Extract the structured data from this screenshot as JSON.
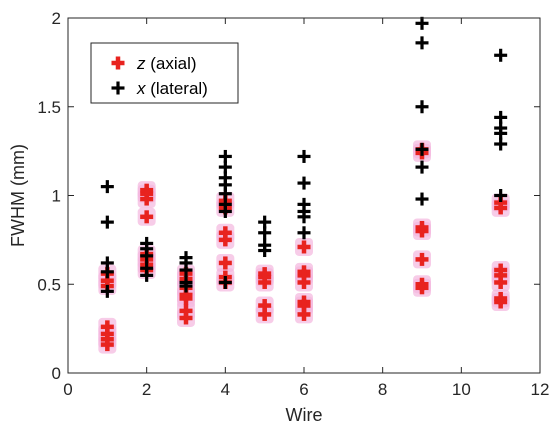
{
  "chart_data": {
    "type": "scatter",
    "title": "",
    "xlabel": "Wire",
    "ylabel": "FWHM (mm)",
    "xlim": [
      0,
      12
    ],
    "ylim": [
      0,
      2
    ],
    "xticks": [
      0,
      2,
      4,
      6,
      8,
      10,
      12
    ],
    "yticks": [
      0,
      0.5,
      1,
      1.5,
      2
    ],
    "xtick_labels": [
      "0",
      "2",
      "4",
      "6",
      "8",
      "10",
      "12"
    ],
    "ytick_labels": [
      "0",
      "0.5",
      "1",
      "1.5",
      "2"
    ],
    "grid": false,
    "legend_position": "top-left",
    "series": [
      {
        "name": "z (axial)",
        "legend_prefix": "z",
        "legend_suffix": " (axial)",
        "color": "#e8231f",
        "halo_color": "#f4b6de",
        "marker": "plus",
        "points": [
          [
            1,
            0.16
          ],
          [
            1,
            0.19
          ],
          [
            1,
            0.22
          ],
          [
            1,
            0.26
          ],
          [
            1,
            0.49
          ],
          [
            1,
            0.52
          ],
          [
            1,
            0.56
          ],
          [
            2,
            0.58
          ],
          [
            2,
            0.61
          ],
          [
            2,
            0.64
          ],
          [
            2,
            0.67
          ],
          [
            2,
            0.88
          ],
          [
            2,
            0.98
          ],
          [
            2,
            1.01
          ],
          [
            2,
            1.03
          ],
          [
            3,
            0.31
          ],
          [
            3,
            0.35
          ],
          [
            3,
            0.42
          ],
          [
            3,
            0.44
          ],
          [
            3,
            0.48
          ],
          [
            3,
            0.53
          ],
          [
            3,
            0.56
          ],
          [
            4,
            0.51
          ],
          [
            4,
            0.54
          ],
          [
            4,
            0.62
          ],
          [
            4,
            0.75
          ],
          [
            4,
            0.79
          ],
          [
            4,
            0.93
          ],
          [
            4,
            0.97
          ],
          [
            5,
            0.33
          ],
          [
            5,
            0.38
          ],
          [
            5,
            0.51
          ],
          [
            5,
            0.54
          ],
          [
            5,
            0.56
          ],
          [
            6,
            0.33
          ],
          [
            6,
            0.38
          ],
          [
            6,
            0.4
          ],
          [
            6,
            0.51
          ],
          [
            6,
            0.55
          ],
          [
            6,
            0.57
          ],
          [
            6,
            0.71
          ],
          [
            9,
            0.48
          ],
          [
            9,
            0.5
          ],
          [
            9,
            0.64
          ],
          [
            9,
            0.8
          ],
          [
            9,
            0.82
          ],
          [
            9,
            1.24
          ],
          [
            9,
            1.26
          ],
          [
            11,
            0.4
          ],
          [
            11,
            0.42
          ],
          [
            11,
            0.51
          ],
          [
            11,
            0.55
          ],
          [
            11,
            0.58
          ],
          [
            11,
            0.93
          ],
          [
            11,
            0.96
          ]
        ]
      },
      {
        "name": "x (lateral)",
        "legend_prefix": "x",
        "legend_suffix": " (lateral)",
        "color": "#000000",
        "marker": "plus",
        "points": [
          [
            1,
            0.46
          ],
          [
            1,
            0.57
          ],
          [
            1,
            0.62
          ],
          [
            1,
            0.85
          ],
          [
            1,
            1.05
          ],
          [
            2,
            0.55
          ],
          [
            2,
            0.59
          ],
          [
            2,
            0.66
          ],
          [
            2,
            0.7
          ],
          [
            2,
            0.73
          ],
          [
            3,
            0.49
          ],
          [
            3,
            0.51
          ],
          [
            3,
            0.58
          ],
          [
            3,
            0.62
          ],
          [
            3,
            0.65
          ],
          [
            4,
            0.51
          ],
          [
            4,
            0.91
          ],
          [
            4,
            0.95
          ],
          [
            4,
            1.01
          ],
          [
            4,
            1.06
          ],
          [
            4,
            1.1
          ],
          [
            4,
            1.16
          ],
          [
            4,
            1.22
          ],
          [
            5,
            0.69
          ],
          [
            5,
            0.72
          ],
          [
            5,
            0.79
          ],
          [
            5,
            0.85
          ],
          [
            6,
            0.79
          ],
          [
            6,
            0.88
          ],
          [
            6,
            0.91
          ],
          [
            6,
            0.95
          ],
          [
            6,
            1.07
          ],
          [
            6,
            1.22
          ],
          [
            9,
            0.98
          ],
          [
            9,
            1.16
          ],
          [
            9,
            1.26
          ],
          [
            9,
            1.5
          ],
          [
            9,
            1.86
          ],
          [
            9,
            1.97
          ],
          [
            11,
            1.0
          ],
          [
            11,
            1.29
          ],
          [
            11,
            1.35
          ],
          [
            11,
            1.38
          ],
          [
            11,
            1.44
          ],
          [
            11,
            1.79
          ]
        ]
      }
    ]
  }
}
